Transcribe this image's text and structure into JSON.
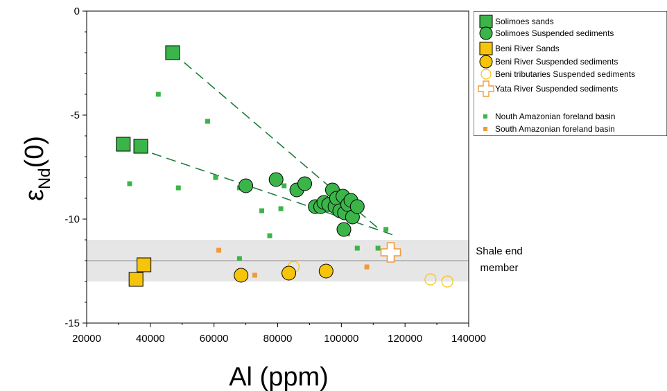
{
  "chart_data": {
    "type": "scatter",
    "xlabel": "Al (ppm)",
    "ylabel": {
      "main": "ε",
      "sub": "Nd",
      "suffix": "(0)"
    },
    "xlim": [
      20000,
      140000
    ],
    "ylim": [
      -15,
      0
    ],
    "xticks": [
      "20000",
      "40000",
      "60000",
      "80000",
      "100000",
      "120000",
      "140000"
    ],
    "yticks": [
      "0",
      "-5",
      "-10",
      "-15"
    ],
    "grid": false,
    "legend_position": "top-right",
    "band": {
      "y_low": -13.0,
      "y_high": -11.0,
      "line_y": -12.0,
      "label_line1": "Shale end",
      "label_line2": "member",
      "color": "#e6e6e6"
    },
    "trend_lines": [
      {
        "color": "#1e7d3c",
        "points": [
          [
            47000,
            -2.0
          ],
          [
            112000,
            -10.5
          ]
        ]
      },
      {
        "color": "#1e7d3c",
        "points": [
          [
            36000,
            -6.6
          ],
          [
            117000,
            -10.8
          ]
        ]
      }
    ],
    "series": [
      {
        "name": "Solimoes sands",
        "marker": "square-large",
        "color": "#3bb54a",
        "points": [
          [
            47000,
            -2.0
          ],
          [
            31500,
            -6.4
          ],
          [
            37000,
            -6.5
          ]
        ]
      },
      {
        "name": "Solimoes Suspended sediments",
        "marker": "circle-large",
        "color": "#3bb54a",
        "points": [
          [
            70000,
            -8.4
          ],
          [
            79500,
            -8.1
          ],
          [
            86000,
            -8.6
          ],
          [
            88500,
            -8.3
          ],
          [
            91800,
            -9.4
          ],
          [
            93500,
            -9.4
          ],
          [
            94500,
            -9.2
          ],
          [
            96000,
            -9.3
          ],
          [
            97200,
            -8.6
          ],
          [
            98000,
            -9.4
          ],
          [
            98500,
            -9.0
          ],
          [
            99500,
            -9.6
          ],
          [
            100500,
            -8.9
          ],
          [
            101000,
            -9.7
          ],
          [
            102000,
            -9.3
          ],
          [
            103000,
            -9.1
          ],
          [
            103500,
            -9.9
          ],
          [
            105000,
            -9.4
          ],
          [
            100800,
            -10.5
          ]
        ]
      },
      {
        "name": "Beni River Sands",
        "marker": "square-large",
        "color": "#f6c40a",
        "points": [
          [
            38000,
            -12.2
          ],
          [
            35500,
            -12.9
          ]
        ]
      },
      {
        "name": "Beni River Suspended sediments",
        "marker": "circle-large",
        "color": "#f6c40a",
        "points": [
          [
            68500,
            -12.7
          ],
          [
            83500,
            -12.6
          ],
          [
            95200,
            -12.5
          ]
        ]
      },
      {
        "name": "Beni tributaries Suspended sediments",
        "marker": "circle-open",
        "color": "#f6c40a",
        "points": [
          [
            85000,
            -12.3
          ],
          [
            128000,
            -12.9
          ],
          [
            133300,
            -13.0
          ]
        ]
      },
      {
        "name": "Yata River Suspended sediments",
        "marker": "cross-open",
        "color": "#f29a38",
        "points": [
          [
            115500,
            -11.6
          ]
        ]
      },
      {
        "name": "Nouth Amazonian foreland basin",
        "marker": "square-small",
        "color": "#3bb54a",
        "points": [
          [
            42500,
            -4.0
          ],
          [
            58000,
            -5.3
          ],
          [
            33500,
            -8.3
          ],
          [
            48800,
            -8.5
          ],
          [
            60500,
            -8.0
          ],
          [
            68000,
            -8.5
          ],
          [
            82000,
            -8.4
          ],
          [
            75000,
            -9.6
          ],
          [
            81000,
            -9.5
          ],
          [
            77500,
            -10.8
          ],
          [
            102000,
            -10.7
          ],
          [
            105000,
            -11.4
          ],
          [
            111500,
            -11.4
          ],
          [
            114000,
            -10.5
          ],
          [
            68000,
            -11.9
          ]
        ]
      },
      {
        "name": "South Amazonian foreland basin",
        "marker": "square-small",
        "color": "#f29a38",
        "points": [
          [
            61500,
            -11.5
          ],
          [
            72800,
            -12.7
          ],
          [
            108000,
            -12.3
          ]
        ]
      }
    ]
  }
}
